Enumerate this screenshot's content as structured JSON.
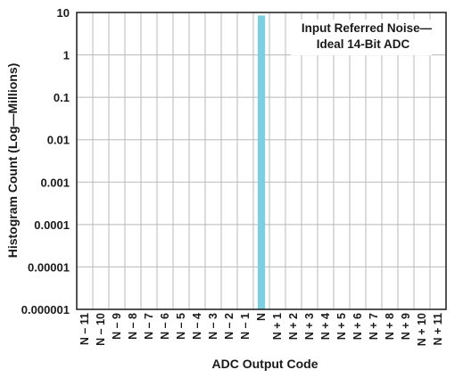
{
  "chart_data": {
    "type": "bar",
    "title": "",
    "xlabel": "ADC Output Code",
    "ylabel": "Histogram Count (Log—Millions)",
    "yscale": "log",
    "ylim": [
      1e-06,
      10
    ],
    "y_ticks": [
      "0.000001",
      "0.00001",
      "0.0001",
      "0.001",
      "0.01",
      "0.1",
      "1",
      "10"
    ],
    "categories": [
      "N – 11",
      "N – 10",
      "N – 9",
      "N – 8",
      "N – 7",
      "N – 6",
      "N – 5",
      "N – 4",
      "N – 3",
      "N – 2",
      "N – 1",
      "N",
      "N + 1",
      "N + 2",
      "N + 3",
      "N + 4",
      "N + 5",
      "N + 6",
      "N + 7",
      "N + 8",
      "N + 9",
      "N + 10",
      "N + 11"
    ],
    "values": [
      0,
      0,
      0,
      0,
      0,
      0,
      0,
      0,
      0,
      0,
      0,
      8.5,
      0,
      0,
      0,
      0,
      0,
      0,
      0,
      0,
      0,
      0,
      0
    ],
    "annotation": [
      "Input Referred Noise—",
      "Ideal 14-Bit ADC"
    ],
    "grid": true,
    "legend_position": "top-right",
    "colors": {
      "bar": "#7ccfe0",
      "grid": "#b8b8b8",
      "axis": "#1a1a1a"
    }
  }
}
